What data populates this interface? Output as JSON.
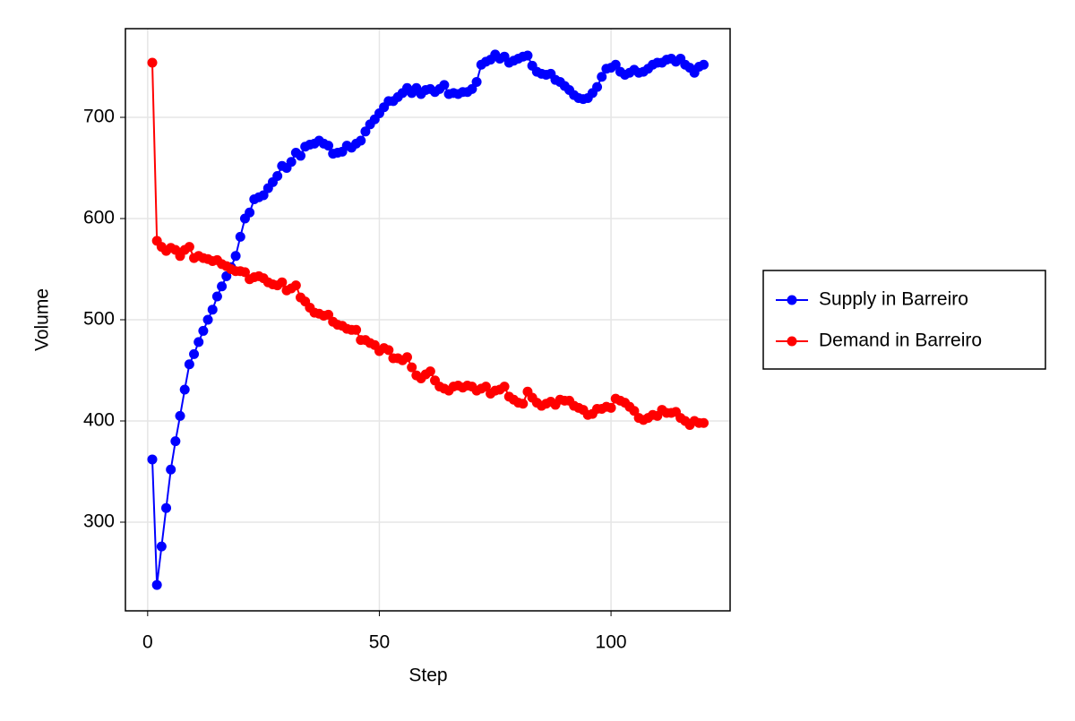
{
  "chart_data": {
    "type": "line",
    "x_label": "Step",
    "y_label": "Volume",
    "x": [
      1,
      2,
      3,
      4,
      5,
      6,
      7,
      8,
      9,
      10,
      11,
      12,
      13,
      14,
      15,
      16,
      17,
      18,
      19,
      20,
      21,
      22,
      23,
      24,
      25,
      26,
      27,
      28,
      29,
      30,
      31,
      32,
      33,
      34,
      35,
      36,
      37,
      38,
      39,
      40,
      41,
      42,
      43,
      44,
      45,
      46,
      47,
      48,
      49,
      50,
      51,
      52,
      53,
      54,
      55,
      56,
      57,
      58,
      59,
      60,
      61,
      62,
      63,
      64,
      65,
      66,
      67,
      68,
      69,
      70,
      71,
      72,
      73,
      74,
      75,
      76,
      77,
      78,
      79,
      80,
      81,
      82,
      83,
      84,
      85,
      86,
      87,
      88,
      89,
      90,
      91,
      92,
      93,
      94,
      95,
      96,
      97,
      98,
      99,
      100,
      101,
      102,
      103,
      104,
      105,
      106,
      107,
      108,
      109,
      110,
      111,
      112,
      113,
      114,
      115,
      116,
      117,
      118,
      119,
      120
    ],
    "series": [
      {
        "name": "Supply in Barreiro",
        "color": "#0000ff",
        "values": [
          362,
          238,
          276,
          314,
          352,
          380,
          405,
          431,
          456,
          466,
          478,
          489,
          500,
          510,
          523,
          533,
          543,
          552,
          563,
          582,
          600,
          606,
          619,
          621,
          623,
          630,
          636,
          642,
          652,
          650,
          656,
          665,
          662,
          671,
          673,
          674,
          677,
          674,
          672,
          664,
          665,
          666,
          672,
          670,
          674,
          677,
          686,
          693,
          698,
          704,
          710,
          716,
          716,
          720,
          724,
          729,
          724,
          729,
          723,
          727,
          728,
          725,
          728,
          732,
          723,
          724,
          723,
          725,
          725,
          728,
          735,
          752,
          755,
          757,
          762,
          758,
          760,
          754,
          756,
          758,
          760,
          761,
          751,
          745,
          743,
          742,
          743,
          737,
          735,
          731,
          727,
          722,
          719,
          718,
          719,
          724,
          730,
          740,
          748,
          749,
          752,
          745,
          742,
          744,
          747,
          744,
          745,
          748,
          752,
          754,
          754,
          757,
          758,
          755,
          758,
          752,
          749,
          744,
          750,
          752
        ]
      },
      {
        "name": "Demand in Barreiro",
        "color": "#ff0000",
        "values": [
          754,
          578,
          572,
          568,
          571,
          569,
          563,
          569,
          572,
          561,
          563,
          561,
          560,
          558,
          559,
          555,
          553,
          550,
          548,
          548,
          547,
          540,
          542,
          543,
          541,
          537,
          535,
          534,
          537,
          529,
          531,
          534,
          522,
          518,
          512,
          507,
          506,
          504,
          505,
          498,
          495,
          494,
          491,
          490,
          490,
          480,
          480,
          477,
          475,
          469,
          472,
          470,
          462,
          462,
          460,
          463,
          453,
          445,
          442,
          446,
          449,
          440,
          434,
          432,
          430,
          434,
          435,
          433,
          435,
          434,
          430,
          432,
          434,
          427,
          430,
          431,
          434,
          424,
          421,
          418,
          417,
          429,
          423,
          418,
          415,
          417,
          419,
          416,
          421,
          420,
          420,
          415,
          413,
          411,
          406,
          407,
          412,
          412,
          414,
          413,
          422,
          420,
          418,
          414,
          410,
          403,
          401,
          403,
          406,
          405,
          411,
          408,
          408,
          409,
          403,
          400,
          396,
          400,
          398,
          398
        ]
      }
    ],
    "xlim": [
      -4.8,
      125.7
    ],
    "ylim": [
      212.4,
      787.6
    ],
    "xticks": [
      0,
      50,
      100
    ],
    "yticks": [
      300,
      400,
      500,
      600,
      700
    ],
    "grid": true,
    "legend": "right"
  }
}
